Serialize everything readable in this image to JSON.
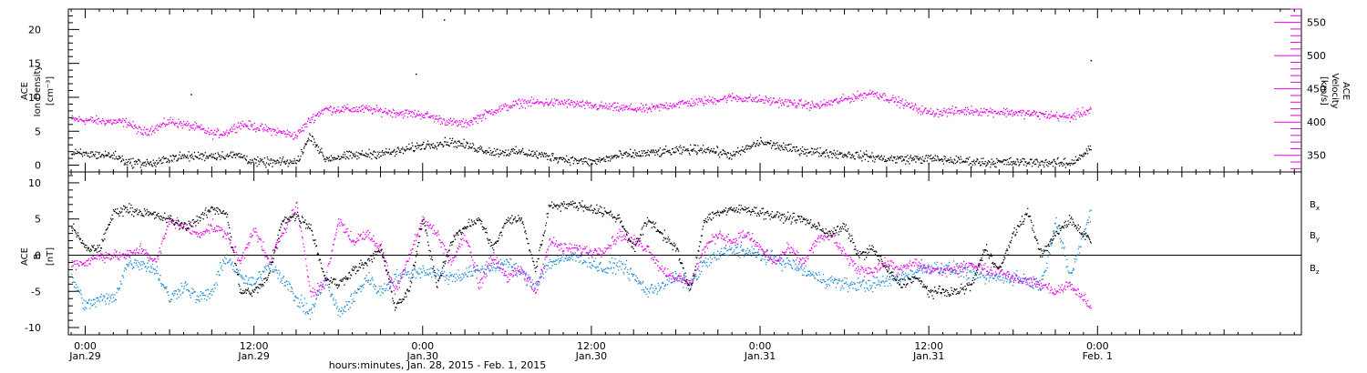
{
  "colors": {
    "black": "#000000",
    "magenta": "#e600e6",
    "blue": "#1a8ad4",
    "axis": "#000000"
  },
  "x_axis": {
    "title": "hours:minutes, Jan. 28, 2015 - Feb. 1, 2015",
    "range_hours": [
      -1.2,
      86.5
    ],
    "major_ticks": [
      {
        "hour": 0,
        "time": "0:00",
        "date": "Jan.29"
      },
      {
        "hour": 12,
        "time": "12:00",
        "date": "Jan.29"
      },
      {
        "hour": 24,
        "time": "0:00",
        "date": "Jan.30"
      },
      {
        "hour": 36,
        "time": "12:00",
        "date": "Jan.30"
      },
      {
        "hour": 48,
        "time": "0:00",
        "date": "Jan.31"
      },
      {
        "hour": 60,
        "time": "12:00",
        "date": "Jan.31"
      },
      {
        "hour": 72,
        "time": "0:00",
        "date": "Feb. 1"
      }
    ]
  },
  "chart_data": [
    {
      "type": "scatter",
      "panel": "top",
      "left_axis": {
        "label_lines": [
          "ACE",
          "Ion Density"
        ],
        "unit": "[cm⁻³]",
        "ylim": [
          -1,
          23
        ],
        "ticks": [
          0,
          5,
          10,
          15,
          20
        ]
      },
      "right_axis": {
        "label_lines": [
          "ACE",
          "Velocity"
        ],
        "unit": "[km/s]",
        "ylim": [
          325,
          570
        ],
        "ticks": [
          350,
          400,
          450,
          500,
          550
        ]
      },
      "series": [
        {
          "axis": "left",
          "color": "#000000",
          "knots": [
            [
              -1,
              1.8
            ],
            [
              2,
              1.5
            ],
            [
              3,
              0.5
            ],
            [
              5,
              0.3
            ],
            [
              6,
              1.2
            ],
            [
              9,
              1.5
            ],
            [
              11,
              1.5
            ],
            [
              12,
              0.5
            ],
            [
              15,
              0.5
            ],
            [
              16,
              4.5
            ],
            [
              17,
              1
            ],
            [
              19,
              1.5
            ],
            [
              22,
              2
            ],
            [
              24,
              3
            ],
            [
              26,
              3.5
            ],
            [
              29,
              2
            ],
            [
              31,
              2
            ],
            [
              34,
              1
            ],
            [
              36,
              0.5
            ],
            [
              38,
              1.5
            ],
            [
              41,
              2
            ],
            [
              44,
              2.5
            ],
            [
              46,
              1.5
            ],
            [
              48,
              3.5
            ],
            [
              50,
              2.5
            ],
            [
              52,
              2
            ],
            [
              55,
              1.5
            ],
            [
              57,
              1
            ],
            [
              60,
              1
            ],
            [
              64,
              0.5
            ],
            [
              68,
              0.5
            ],
            [
              70,
              0.3
            ],
            [
              71.5,
              2.5
            ]
          ],
          "spread": 0.7
        },
        {
          "axis": "right",
          "color": "#e600e6",
          "knots": [
            [
              -1,
              405
            ],
            [
              3,
              400
            ],
            [
              4,
              385
            ],
            [
              5,
              392
            ],
            [
              6,
              402
            ],
            [
              8,
              392
            ],
            [
              9,
              383
            ],
            [
              10,
              385
            ],
            [
              11,
              398
            ],
            [
              14,
              385
            ],
            [
              15,
              380
            ],
            [
              16,
              405
            ],
            [
              17,
              420
            ],
            [
              20,
              420
            ],
            [
              22,
              415
            ],
            [
              24,
              412
            ],
            [
              26,
              400
            ],
            [
              27,
              398
            ],
            [
              29,
              418
            ],
            [
              31,
              430
            ],
            [
              34,
              430
            ],
            [
              36,
              425
            ],
            [
              38,
              422
            ],
            [
              40,
              420
            ],
            [
              42,
              428
            ],
            [
              44,
              432
            ],
            [
              46,
              438
            ],
            [
              49,
              432
            ],
            [
              52,
              425
            ],
            [
              54,
              435
            ],
            [
              56,
              445
            ],
            [
              58,
              430
            ],
            [
              59,
              422
            ],
            [
              60,
              415
            ],
            [
              63,
              418
            ],
            [
              66,
              415
            ],
            [
              68,
              412
            ],
            [
              70,
              408
            ],
            [
              71.5,
              420
            ]
          ],
          "spread": 7
        }
      ],
      "outliers": [
        {
          "x": 25.5,
          "y": 21.5
        },
        {
          "x": 23.5,
          "y": 13.5
        },
        {
          "x": 7.5,
          "y": 10.5
        },
        {
          "x": 71.5,
          "y": 15.5
        }
      ]
    },
    {
      "type": "scatter",
      "panel": "bottom",
      "left_axis": {
        "label_lines": [
          "ACE",
          "B"
        ],
        "unit": "[nT]",
        "ylim": [
          -11,
          11.5
        ],
        "ticks": [
          -10,
          -5,
          0,
          5,
          10
        ]
      },
      "legend": [
        {
          "text": "B",
          "sub": "x",
          "color": "#000000"
        },
        {
          "text": "B",
          "sub": "y",
          "color": "#1a8ad4"
        },
        {
          "text": "B",
          "sub": "z",
          "color": "#e600e6"
        }
      ],
      "series": [
        {
          "name": "Bx",
          "color": "#000000",
          "knots": [
            [
              -1,
              4
            ],
            [
              0,
              1
            ],
            [
              1,
              1
            ],
            [
              2,
              6
            ],
            [
              3,
              6.5
            ],
            [
              4,
              6
            ],
            [
              5,
              5.5
            ],
            [
              6,
              5
            ],
            [
              7,
              4
            ],
            [
              8,
              5
            ],
            [
              9,
              6.5
            ],
            [
              10,
              6
            ],
            [
              11,
              -5
            ],
            [
              12,
              -5
            ],
            [
              13,
              -3
            ],
            [
              14,
              5
            ],
            [
              15,
              5.5
            ],
            [
              16,
              4
            ],
            [
              17,
              -3
            ],
            [
              18,
              -4
            ],
            [
              19,
              -2
            ],
            [
              20,
              -1
            ],
            [
              21,
              1
            ],
            [
              22,
              -7
            ],
            [
              23,
              -5
            ],
            [
              24,
              5
            ],
            [
              25,
              -4
            ],
            [
              26,
              2
            ],
            [
              27,
              4
            ],
            [
              28,
              5
            ],
            [
              29,
              1
            ],
            [
              30,
              5
            ],
            [
              31,
              5
            ],
            [
              32,
              -2
            ],
            [
              33,
              7
            ],
            [
              35,
              7
            ],
            [
              37,
              6
            ],
            [
              38,
              5
            ],
            [
              39,
              1
            ],
            [
              40,
              5
            ],
            [
              42,
              1
            ],
            [
              43,
              -5
            ],
            [
              44,
              5
            ],
            [
              45,
              6
            ],
            [
              47,
              6.5
            ],
            [
              49,
              5.5
            ],
            [
              51,
              5
            ],
            [
              53,
              3
            ],
            [
              54,
              4
            ],
            [
              55,
              0
            ],
            [
              56,
              1
            ],
            [
              57,
              -2
            ],
            [
              58,
              -4
            ],
            [
              59,
              -3
            ],
            [
              60,
              -5
            ],
            [
              62,
              -5
            ],
            [
              63,
              -4
            ],
            [
              64,
              1
            ],
            [
              65,
              -2
            ],
            [
              66,
              3
            ],
            [
              67,
              6
            ],
            [
              68,
              0
            ],
            [
              69,
              3
            ],
            [
              70,
              5
            ],
            [
              71.5,
              2
            ]
          ],
          "spread": 0.7
        },
        {
          "name": "By",
          "color": "#1a8ad4",
          "knots": [
            [
              -1,
              -3
            ],
            [
              0,
              -7
            ],
            [
              1,
              -6
            ],
            [
              2,
              -6
            ],
            [
              3,
              -1
            ],
            [
              4,
              -1
            ],
            [
              5,
              -2
            ],
            [
              6,
              -6
            ],
            [
              7,
              -4
            ],
            [
              8,
              -6
            ],
            [
              9,
              -5
            ],
            [
              10,
              0
            ],
            [
              11,
              -3
            ],
            [
              12,
              -4
            ],
            [
              13,
              -1
            ],
            [
              14,
              -3
            ],
            [
              15,
              -6
            ],
            [
              16,
              -8
            ],
            [
              17,
              -3
            ],
            [
              18,
              -8
            ],
            [
              19,
              -6
            ],
            [
              20,
              -3
            ],
            [
              21,
              -5
            ],
            [
              22,
              -3
            ],
            [
              24,
              -2
            ],
            [
              26,
              -3
            ],
            [
              28,
              -2
            ],
            [
              30,
              -1
            ],
            [
              32,
              -4
            ],
            [
              33,
              -1
            ],
            [
              35,
              0
            ],
            [
              36,
              -1
            ],
            [
              37,
              -2
            ],
            [
              38,
              -1
            ],
            [
              40,
              -5
            ],
            [
              42,
              -3
            ],
            [
              43,
              -4
            ],
            [
              44,
              -1
            ],
            [
              46,
              1
            ],
            [
              48,
              0
            ],
            [
              50,
              -1
            ],
            [
              52,
              -3
            ],
            [
              54,
              -4
            ],
            [
              56,
              -4
            ],
            [
              58,
              -3
            ],
            [
              60,
              -1.5
            ],
            [
              62,
              -2
            ],
            [
              64,
              -3
            ],
            [
              66,
              -3
            ],
            [
              68,
              -4
            ],
            [
              69,
              5
            ],
            [
              70,
              -3
            ],
            [
              71.5,
              6
            ]
          ],
          "spread": 1.0
        },
        {
          "name": "Bz",
          "color": "#e600e6",
          "knots": [
            [
              -1,
              -1
            ],
            [
              0,
              -1
            ],
            [
              1,
              0
            ],
            [
              2,
              0
            ],
            [
              3,
              0
            ],
            [
              4,
              1
            ],
            [
              5,
              -1
            ],
            [
              6,
              5
            ],
            [
              7,
              4
            ],
            [
              8,
              3
            ],
            [
              9,
              4
            ],
            [
              10,
              3
            ],
            [
              11,
              -1
            ],
            [
              12,
              4
            ],
            [
              13,
              -1
            ],
            [
              14,
              3
            ],
            [
              15,
              7
            ],
            [
              16,
              -5
            ],
            [
              17,
              -4
            ],
            [
              18,
              5
            ],
            [
              19,
              2
            ],
            [
              20,
              3
            ],
            [
              21,
              1
            ],
            [
              22,
              -5
            ],
            [
              23,
              0
            ],
            [
              24,
              5
            ],
            [
              25,
              3
            ],
            [
              26,
              -1
            ],
            [
              27,
              3
            ],
            [
              28,
              -4
            ],
            [
              29,
              0
            ],
            [
              30,
              -3
            ],
            [
              31,
              -2
            ],
            [
              32,
              -5
            ],
            [
              33,
              2
            ],
            [
              34,
              1
            ],
            [
              35,
              1
            ],
            [
              36,
              0.5
            ],
            [
              37,
              1
            ],
            [
              38,
              3
            ],
            [
              40,
              1
            ],
            [
              41,
              -2
            ],
            [
              43,
              -4
            ],
            [
              44,
              1
            ],
            [
              45,
              3
            ],
            [
              46,
              2
            ],
            [
              47,
              3
            ],
            [
              48,
              1
            ],
            [
              49,
              -1
            ],
            [
              50,
              1
            ],
            [
              51,
              -1
            ],
            [
              52,
              2
            ],
            [
              53,
              3
            ],
            [
              54,
              0
            ],
            [
              55,
              -2
            ],
            [
              56,
              -2
            ],
            [
              57,
              -1
            ],
            [
              58,
              -2
            ],
            [
              59,
              -1
            ],
            [
              60,
              -2
            ],
            [
              62,
              -2
            ],
            [
              63,
              -1
            ],
            [
              64,
              -2
            ],
            [
              65,
              -2
            ],
            [
              66,
              -3
            ],
            [
              68,
              -4
            ],
            [
              69,
              -5
            ],
            [
              70,
              -4
            ],
            [
              71.5,
              -7
            ]
          ],
          "spread": 0.8
        }
      ]
    }
  ]
}
